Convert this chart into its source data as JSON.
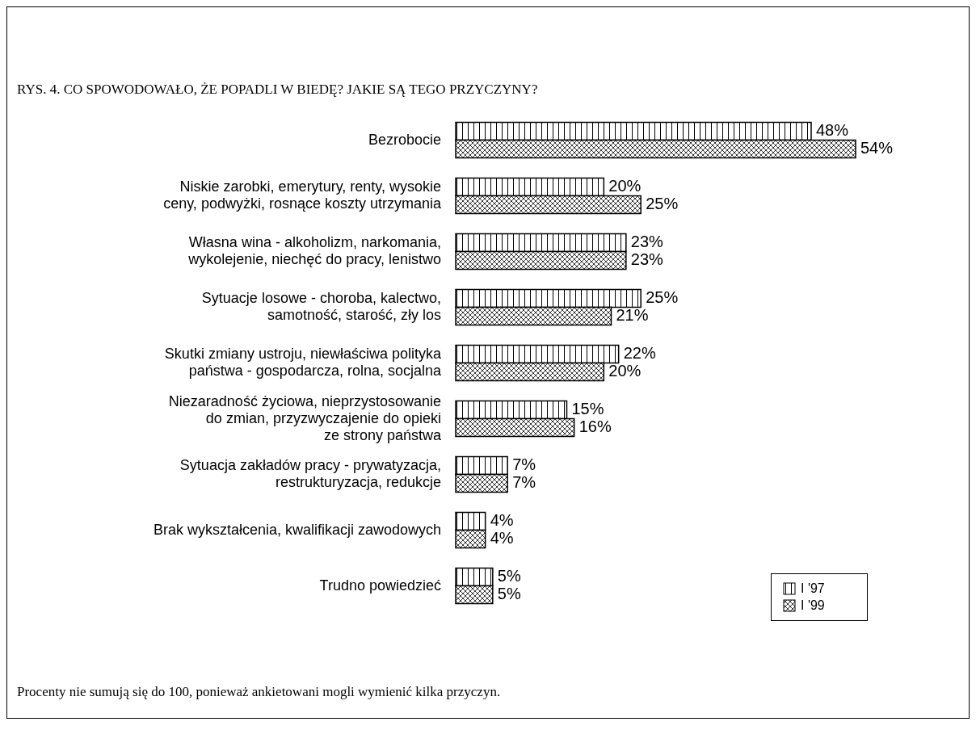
{
  "chart_data": {
    "type": "bar",
    "orientation": "horizontal",
    "title": "RYS. 4. CO SPOWODOWAŁO, ŻE POPADLI W BIEDĘ? JAKIE SĄ TEGO PRZYCZYNY?",
    "categories": [
      "Bezrobocie",
      "Niskie zarobki, emerytury, renty, wysokie\nceny, podwyżki, rosnące koszty utrzymania",
      "Własna wina - alkoholizm, narkomania,\nwykolejenie, niechęć do pracy, lenistwo",
      "Sytuacje losowe - choroba, kalectwo,\nsamotność, starość, zły los",
      "Skutki zmiany ustroju, niewłaściwa polityka\npaństwa - gospodarcza, rolna, socjalna",
      "Niezaradność życiowa, nieprzystosowanie\ndo zmian, przyzwyczajenie do opieki\nze strony państwa",
      "Sytuacja zakładów pracy - prywatyzacja,\nrestrukturyzacja, redukcje",
      "Brak wykształcenia, kwalifikacji zawodowych",
      "Trudno powiedzieć"
    ],
    "series": [
      {
        "name": "I '97",
        "color": "#000000",
        "values": [
          48,
          20,
          23,
          25,
          22,
          15,
          7,
          4,
          5
        ],
        "value_labels": [
          "48%",
          "20%",
          "23%",
          "25%",
          "22%",
          "15%",
          "7%",
          "4%",
          "5%"
        ]
      },
      {
        "name": "I '99",
        "color": "#000000",
        "values": [
          54,
          25,
          23,
          21,
          20,
          16,
          7,
          4,
          5
        ],
        "value_labels": [
          "54%",
          "25%",
          "23%",
          "21%",
          "20%",
          "16%",
          "7%",
          "4%",
          "5%"
        ]
      }
    ],
    "legend": "bottom right",
    "annotations": [
      "Procenty nie sumują się do 100, ponieważ ankietowani mogli wymienić kilka przyczyn."
    ]
  }
}
